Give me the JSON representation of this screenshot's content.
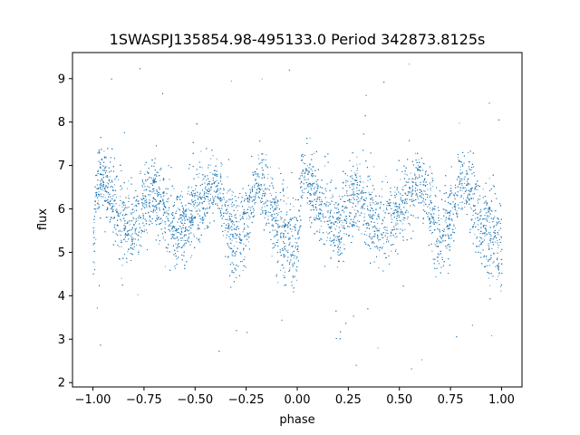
{
  "chart_data": {
    "type": "scatter",
    "title": "1SWASPJ135854.98-495133.0 Period 342873.8125s",
    "xlabel": "phase",
    "ylabel": "flux",
    "xlim": [
      -1.1,
      1.1
    ],
    "ylim": [
      1.9,
      9.6
    ],
    "xticks": [
      -1.0,
      -0.75,
      -0.5,
      -0.25,
      0.0,
      0.25,
      0.5,
      0.75,
      1.0
    ],
    "xtick_labels": [
      "−1.00",
      "−0.75",
      "−0.50",
      "−0.25",
      "0.00",
      "0.25",
      "0.50",
      "0.75",
      "1.00"
    ],
    "yticks": [
      2,
      3,
      4,
      5,
      6,
      7,
      8,
      9
    ],
    "ytick_labels": [
      "2",
      "3",
      "4",
      "5",
      "6",
      "7",
      "8",
      "9"
    ],
    "grid": false,
    "marker_color": "#1f77b4",
    "marker_size": 1,
    "series": [
      {
        "phase_range": [
          -1.0,
          1.0
        ],
        "periodic_in_phase": 1.0,
        "approx_points": 10000,
        "profile_phase": [
          0.0,
          0.02,
          0.05,
          0.1,
          0.15,
          0.2,
          0.25,
          0.3,
          0.35,
          0.4,
          0.45,
          0.5,
          0.55,
          0.6,
          0.65,
          0.7,
          0.75,
          0.8,
          0.85,
          0.9,
          0.95,
          1.0
        ],
        "profile_flux_center": [
          5.0,
          6.6,
          6.7,
          6.1,
          5.9,
          5.5,
          6.2,
          6.4,
          6.0,
          5.6,
          5.7,
          6.0,
          6.3,
          6.6,
          5.9,
          5.3,
          5.8,
          6.6,
          6.4,
          5.6,
          5.4,
          5.0
        ],
        "profile_flux_spread": [
          0.55,
          0.35,
          0.35,
          0.5,
          0.5,
          0.45,
          0.45,
          0.4,
          0.45,
          0.45,
          0.45,
          0.4,
          0.4,
          0.35,
          0.5,
          0.55,
          0.45,
          0.35,
          0.45,
          0.5,
          0.55,
          0.55
        ],
        "outlier_flux_range": [
          2.2,
          9.4
        ]
      }
    ]
  }
}
